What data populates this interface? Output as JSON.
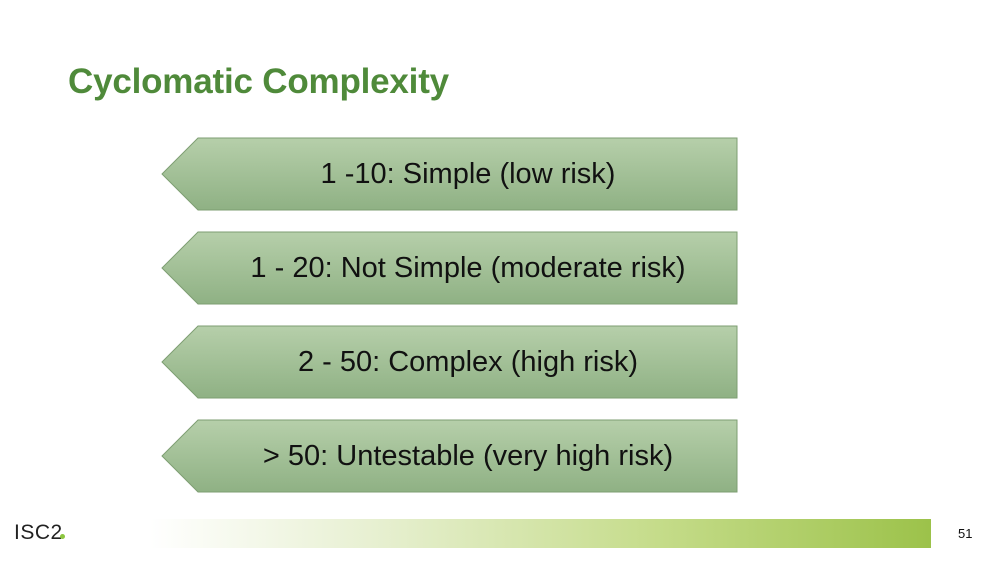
{
  "slide": {
    "title": "Cyclomatic Complexity",
    "page_number": "51",
    "logo_text": "ISC2"
  },
  "items": [
    {
      "label": "1 -10: Simple (low risk)"
    },
    {
      "label": "1 - 20: Not Simple (moderate risk)"
    },
    {
      "label": "2 - 50: Complex (high risk)"
    },
    {
      "label": "> 50: Untestable (very high risk)"
    }
  ],
  "colors": {
    "title": "#4f8a3a",
    "arrow_fill_top": "#b6cfaa",
    "arrow_fill_bottom": "#8fb184",
    "arrow_stroke": "#7d9e72",
    "footer_accent": "#9cc24a"
  }
}
